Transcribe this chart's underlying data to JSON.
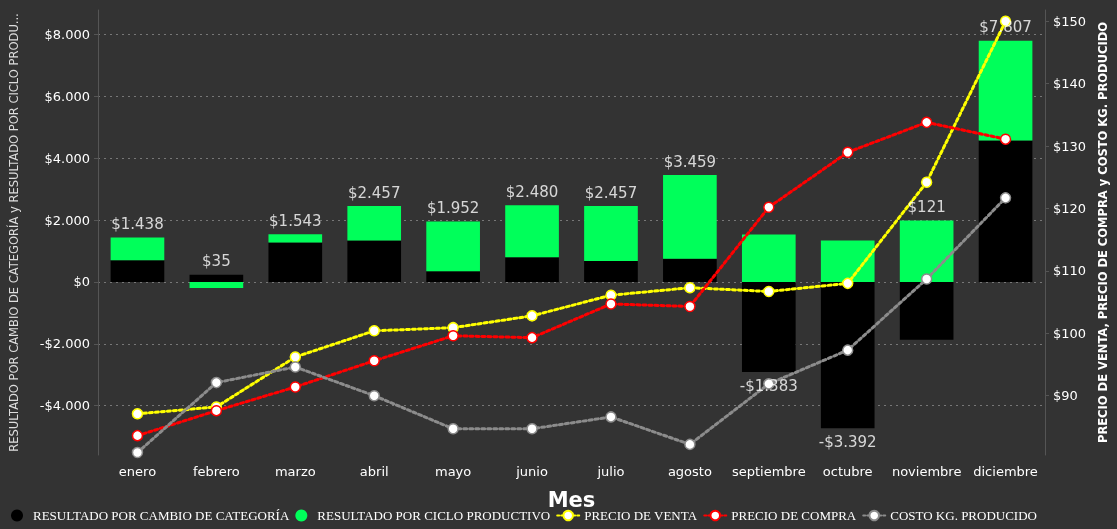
{
  "chart_data": {
    "type": "bar",
    "stacked": true,
    "xlabel": "Mes",
    "ylabel": "RESULTADO POR CAMBIO DE CATEGORÍA y RESULTADO POR CICLO PRODU...",
    "y2label": "PRECIO DE VENTA, PRECIO DE COMPRA y COSTO KG. PRODUCIDO",
    "categories": [
      "enero",
      "febrero",
      "marzo",
      "abril",
      "mayo",
      "junio",
      "julio",
      "agosto",
      "septiembre",
      "octubre",
      "noviembre",
      "diciembre"
    ],
    "series": [
      {
        "name": "RESULTADO POR CAMBIO DE CATEGORÍA",
        "type": "bar",
        "color": "#000000",
        "values": [
          700,
          230,
          1280,
          1340,
          350,
          800,
          675,
          750,
          -2916,
          -4735,
          -1869,
          4578
        ]
      },
      {
        "name": "RESULTADO POR CICLO PRODUCTIVO",
        "type": "bar",
        "color": "#00ff5a",
        "values": [
          738,
          -195,
          263,
          1117,
          1602,
          1680,
          1782,
          2709,
          1533,
          1343,
          1990,
          3229
        ]
      },
      {
        "name": "PRECIO DE VENTA",
        "type": "line",
        "axis": "y2",
        "color": "#ffff00",
        "values": [
          87.1,
          88.2,
          96.2,
          100.4,
          100.9,
          102.8,
          106.1,
          107.3,
          106.7,
          108.0,
          124.2,
          150.0
        ]
      },
      {
        "name": "PRECIO DE COMPRA",
        "type": "line",
        "axis": "y2",
        "color": "#ff0000",
        "values": [
          83.6,
          87.6,
          91.4,
          95.6,
          99.6,
          99.3,
          104.7,
          104.3,
          120.2,
          129.0,
          133.8,
          131.1
        ]
      },
      {
        "name": "COSTO KG. PRODUCIDO",
        "type": "line",
        "axis": "y2",
        "color": "#8c8c8c",
        "values": [
          80.9,
          92.1,
          94.6,
          90.0,
          84.7,
          84.7,
          86.6,
          82.2,
          91.9,
          97.3,
          108.7,
          121.7
        ]
      }
    ],
    "totals": [
      "$1.438",
      "$35",
      "$1.543",
      "$2.457",
      "$1.952",
      "$2.480",
      "$2.457",
      "$3.459",
      "-$1.383",
      "-$3.392",
      "$121",
      "$7.807"
    ],
    "ylim": [
      -5600,
      8800
    ],
    "yticks": [
      {
        "value": -4000,
        "label": "-$4.000"
      },
      {
        "value": -2000,
        "label": "-$2.000"
      },
      {
        "value": 0,
        "label": "$0"
      },
      {
        "value": 2000,
        "label": "$2.000"
      },
      {
        "value": 4000,
        "label": "$4.000"
      },
      {
        "value": 6000,
        "label": "$6.000"
      },
      {
        "value": 8000,
        "label": "$8.000"
      }
    ],
    "y2lim": [
      80.5,
      151.8
    ],
    "y2ticks": [
      {
        "value": 90,
        "label": "$90"
      },
      {
        "value": 100,
        "label": "$100"
      },
      {
        "value": 110,
        "label": "$110"
      },
      {
        "value": 120,
        "label": "$120"
      },
      {
        "value": 130,
        "label": "$130"
      },
      {
        "value": 140,
        "label": "$140"
      },
      {
        "value": 150,
        "label": "$150"
      }
    ],
    "grid": "y",
    "legend": "bottom",
    "marker": "circle",
    "line_style": "dotted"
  }
}
